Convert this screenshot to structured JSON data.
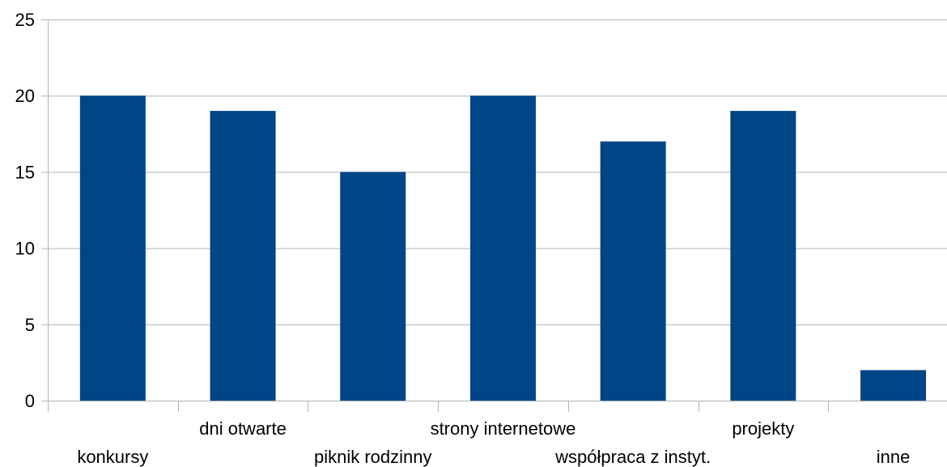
{
  "chart_data": {
    "type": "bar",
    "categories": [
      "konkursy",
      "dni otwarte",
      "piknik rodzinny",
      "strony internetowe",
      "współpraca z instyt.",
      "projekty",
      "inne"
    ],
    "values": [
      20,
      19,
      15,
      20,
      17,
      19,
      2
    ],
    "title": "",
    "xlabel": "",
    "ylabel": "",
    "ylim": [
      0,
      25
    ],
    "yticks": [
      0,
      5,
      10,
      15,
      20,
      25
    ],
    "grid": true,
    "legend": "none",
    "bar_color": "#004586",
    "grid_color": "#b3b3b3"
  }
}
